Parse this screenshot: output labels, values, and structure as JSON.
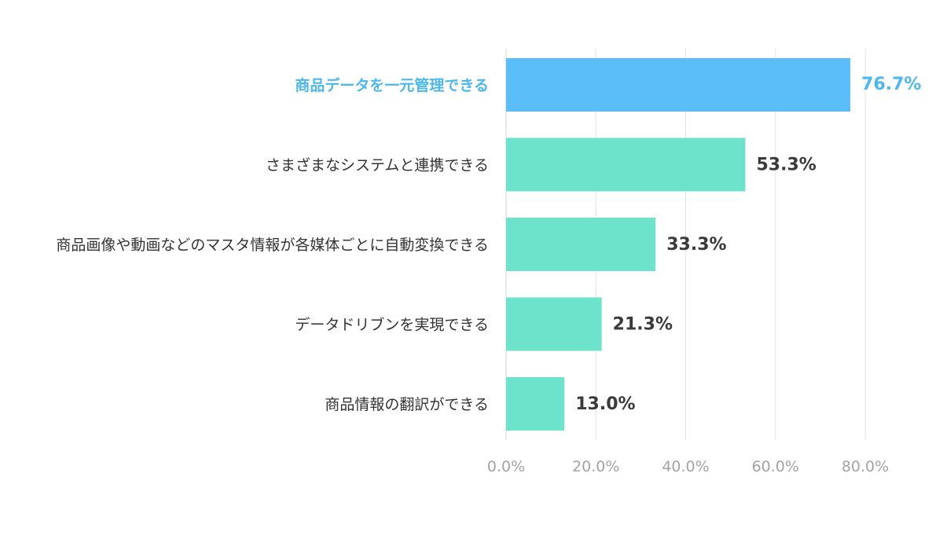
{
  "chart_data": {
    "type": "bar",
    "orientation": "horizontal",
    "categories": [
      "商品データを一元管理できる",
      "さまざまなシステムと連携できる",
      "商品画像や動画などのマスタ情報が各媒体ごとに自動変換できる",
      "データドリブンを実現できる",
      "商品情報の翻訳ができる"
    ],
    "values": [
      76.7,
      53.3,
      33.3,
      21.3,
      13.0
    ],
    "value_labels": [
      "76.7%",
      "53.3%",
      "33.3%",
      "21.3%",
      "13.0%"
    ],
    "highlight_index": 0,
    "xlim": [
      0,
      80
    ],
    "ticks": [
      0,
      20,
      40,
      60,
      80
    ],
    "tick_labels": [
      "0.0%",
      "20.0%",
      "40.0%",
      "60.0%",
      "80.0%"
    ],
    "grid": true,
    "colors": {
      "highlight": "#5bbef8",
      "bar": "#6ee3cc",
      "highlight_text": "#4db8f0",
      "text": "#333333"
    }
  }
}
